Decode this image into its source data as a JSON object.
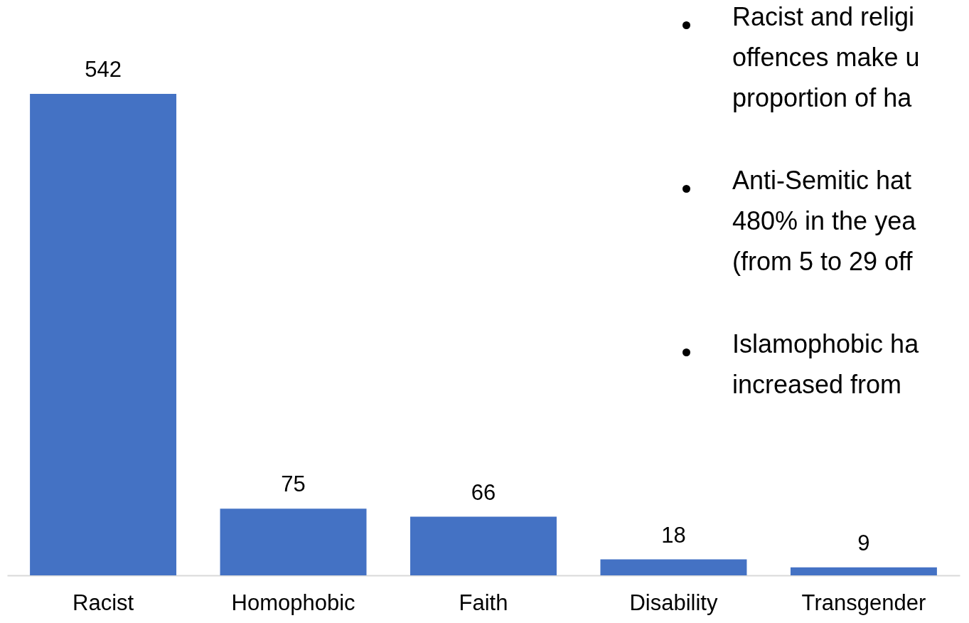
{
  "chart_data": {
    "type": "bar",
    "categories": [
      "Racist",
      "Homophobic",
      "Faith",
      "Disability",
      "Transgender"
    ],
    "values": [
      542,
      75,
      66,
      18,
      9
    ],
    "color": "#4472c4",
    "data_labels": true,
    "grid": false,
    "tick_labels": "x",
    "annotations": [
      "Racist and religi\noffences make u\nproportion of ha",
      "Anti-Semitic hat\n480% in the yea\n(from 5 to 29 off",
      "Islamophobic ha\nincreased from"
    ]
  }
}
